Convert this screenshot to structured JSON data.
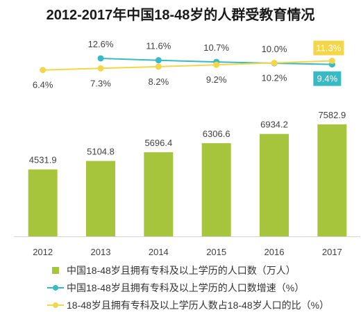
{
  "chart_data": {
    "type": "bar",
    "title": "2012-2017年中国18-48岁的人群受教育情况",
    "categories": [
      "2012",
      "2013",
      "2014",
      "2015",
      "2016",
      "2017"
    ],
    "ylim": [
      0,
      8000
    ],
    "y2lim": [
      0,
      20
    ],
    "grid": false,
    "legend_position": "bottom",
    "series": [
      {
        "name": "中国18-48岁且拥有专科及以上学历的人口数（万人）",
        "type": "bar",
        "axis": "primary",
        "color": "#a6c43c",
        "values": [
          4531.9,
          5104.8,
          5696.4,
          6306.6,
          6934.2,
          7582.9
        ]
      },
      {
        "name": "中国18-48岁且拥有专科及以上学历的人口数增速（%）",
        "type": "line",
        "axis": "secondary",
        "color": "#38bac4",
        "values": [
          null,
          12.6,
          11.6,
          10.7,
          10.0,
          9.4
        ],
        "labels": [
          null,
          "12.6%",
          "11.6%",
          "10.7%",
          "10.0%",
          "9.4%"
        ]
      },
      {
        "name": "18-48岁且拥有专科及以上学历人数占18-48岁人口的比（%）",
        "type": "line",
        "axis": "secondary",
        "color": "#f4d64a",
        "values": [
          6.4,
          7.3,
          8.2,
          9.2,
          10.2,
          11.3
        ],
        "labels": [
          "6.4%",
          "7.3%",
          "8.2%",
          "9.2%",
          "10.2%",
          "11.3%"
        ]
      }
    ]
  }
}
